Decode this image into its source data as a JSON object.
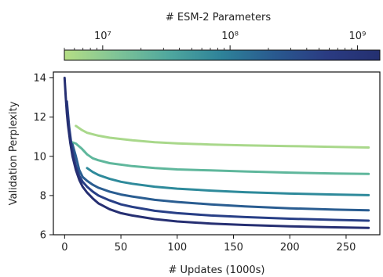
{
  "chart_data": {
    "type": "line",
    "xlabel": "# Updates (1000s)",
    "ylabel": "Validation Perplexity",
    "xlim": [
      -10,
      280
    ],
    "ylim": [
      6,
      14.3
    ],
    "xticks": [
      0,
      50,
      100,
      150,
      200,
      250
    ],
    "yticks": [
      6,
      8,
      10,
      12,
      14
    ],
    "grid": false,
    "colorbar": {
      "label": "# ESM-2 Parameters",
      "scale": "log",
      "range": [
        5000000,
        1500000000
      ],
      "ticks": [
        10000000,
        100000000,
        1000000000
      ],
      "tick_labels": [
        "10⁷",
        "10⁸",
        "10⁹"
      ],
      "colormap": [
        "#b5de85",
        "#7fc497",
        "#4fa79e",
        "#2e8299",
        "#29598f",
        "#2a3b82",
        "#243070"
      ]
    },
    "series": [
      {
        "color": "#a9d88b",
        "x": [
          10,
          15,
          20,
          30,
          40,
          60,
          80,
          100,
          130,
          160,
          200,
          240,
          270
        ],
        "y": [
          11.55,
          11.35,
          11.2,
          11.05,
          10.95,
          10.82,
          10.72,
          10.66,
          10.6,
          10.56,
          10.52,
          10.48,
          10.45
        ]
      },
      {
        "color": "#5fb79c",
        "x": [
          5,
          10,
          15,
          20,
          25,
          30,
          40,
          60,
          80,
          100,
          130,
          160,
          200,
          240,
          270
        ],
        "y": [
          10.75,
          10.65,
          10.4,
          10.1,
          9.9,
          9.8,
          9.65,
          9.5,
          9.4,
          9.33,
          9.28,
          9.23,
          9.17,
          9.12,
          9.1
        ]
      },
      {
        "color": "#2e8a9b",
        "x": [
          20,
          25,
          30,
          40,
          50,
          60,
          80,
          100,
          130,
          160,
          200,
          240,
          270
        ],
        "y": [
          9.4,
          9.2,
          9.05,
          8.85,
          8.7,
          8.6,
          8.45,
          8.35,
          8.25,
          8.17,
          8.1,
          8.05,
          8.02
        ]
      },
      {
        "color": "#2a5d91",
        "x": [
          5,
          7,
          10,
          13,
          16,
          20,
          25,
          30,
          40,
          50,
          60,
          80,
          100,
          130,
          160,
          200,
          240,
          270
        ],
        "y": [
          10.7,
          10.6,
          10.0,
          9.3,
          8.95,
          8.75,
          8.55,
          8.4,
          8.2,
          8.05,
          7.95,
          7.78,
          7.67,
          7.55,
          7.45,
          7.35,
          7.28,
          7.25
        ]
      },
      {
        "color": "#283f86",
        "x": [
          2,
          4,
          6,
          8,
          10,
          13,
          16,
          20,
          25,
          30,
          40,
          50,
          60,
          80,
          100,
          130,
          160,
          200,
          240,
          270
        ],
        "y": [
          12.8,
          11.5,
          10.6,
          10.0,
          9.5,
          9.0,
          8.7,
          8.45,
          8.2,
          8.0,
          7.75,
          7.55,
          7.42,
          7.22,
          7.1,
          6.98,
          6.9,
          6.82,
          6.76,
          6.72
        ]
      },
      {
        "color": "#262f72",
        "x": [
          0,
          1,
          2,
          3,
          5,
          7,
          10,
          13,
          16,
          20,
          25,
          30,
          40,
          50,
          60,
          80,
          100,
          130,
          160,
          200,
          240,
          270
        ],
        "y": [
          14.0,
          13.0,
          12.2,
          11.6,
          10.7,
          10.0,
          9.3,
          8.8,
          8.45,
          8.15,
          7.85,
          7.6,
          7.3,
          7.1,
          6.98,
          6.8,
          6.68,
          6.57,
          6.5,
          6.43,
          6.38,
          6.35
        ]
      }
    ]
  }
}
